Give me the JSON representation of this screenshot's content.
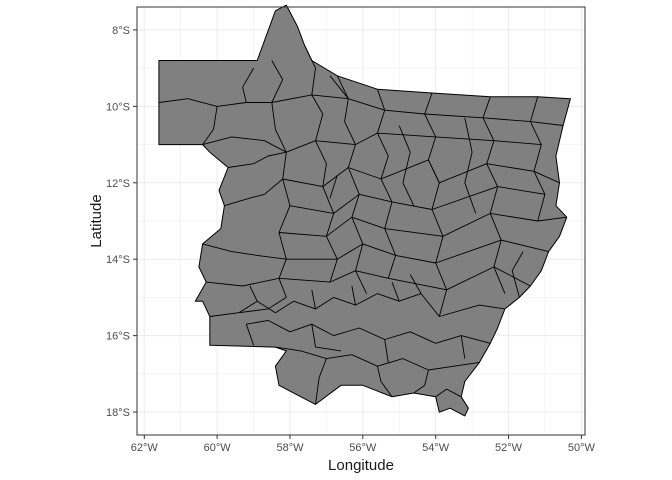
{
  "axes": {
    "xlabel": "Longitude",
    "ylabel": "Latitude"
  },
  "chart_data": {
    "type": "map",
    "region_fill": "#808080",
    "border_color": "#000000",
    "panel_background": "#ffffff",
    "grid": true,
    "grid_color": "#ebebeb",
    "xlim": [
      -62.2,
      -49.9
    ],
    "ylim": [
      -18.6,
      -7.4
    ],
    "x_ticks": [
      {
        "value": -62,
        "label": "62°W"
      },
      {
        "value": -60,
        "label": "60°W"
      },
      {
        "value": -58,
        "label": "58°W"
      },
      {
        "value": -56,
        "label": "56°W"
      },
      {
        "value": -54,
        "label": "54°W"
      },
      {
        "value": -52,
        "label": "52°W"
      },
      {
        "value": -50,
        "label": "50°W"
      }
    ],
    "y_ticks": [
      {
        "value": -8,
        "label": "8°S"
      },
      {
        "value": -10,
        "label": "10°S"
      },
      {
        "value": -12,
        "label": "12°S"
      },
      {
        "value": -14,
        "label": "14°S"
      },
      {
        "value": -16,
        "label": "16°S"
      },
      {
        "value": -18,
        "label": "18°S"
      }
    ],
    "outline": [
      [
        -61.6,
        -8.8
      ],
      [
        -58.9,
        -8.8
      ],
      [
        -58.4,
        -7.5
      ],
      [
        -58.1,
        -7.35
      ],
      [
        -57.8,
        -7.9
      ],
      [
        -57.6,
        -8.4
      ],
      [
        -57.4,
        -8.8
      ],
      [
        -56.7,
        -9.2
      ],
      [
        -55.6,
        -9.55
      ],
      [
        -54.1,
        -9.65
      ],
      [
        -52.5,
        -9.75
      ],
      [
        -51.2,
        -9.75
      ],
      [
        -50.3,
        -9.8
      ],
      [
        -50.5,
        -10.5
      ],
      [
        -50.7,
        -11.3
      ],
      [
        -50.6,
        -12.0
      ],
      [
        -50.7,
        -12.6
      ],
      [
        -50.4,
        -12.9
      ],
      [
        -50.6,
        -13.4
      ],
      [
        -50.9,
        -13.8
      ],
      [
        -51.1,
        -14.3
      ],
      [
        -51.4,
        -14.7
      ],
      [
        -51.7,
        -15.0
      ],
      [
        -52.1,
        -15.3
      ],
      [
        -52.3,
        -15.8
      ],
      [
        -52.5,
        -16.2
      ],
      [
        -52.8,
        -16.7
      ],
      [
        -53.2,
        -17.2
      ],
      [
        -53.3,
        -17.6
      ],
      [
        -53.1,
        -17.9
      ],
      [
        -53.2,
        -18.1
      ],
      [
        -53.6,
        -17.9
      ],
      [
        -53.9,
        -18.0
      ],
      [
        -54.0,
        -17.6
      ],
      [
        -54.6,
        -17.5
      ],
      [
        -55.2,
        -17.6
      ],
      [
        -56.0,
        -17.3
      ],
      [
        -56.6,
        -17.3
      ],
      [
        -57.3,
        -17.8
      ],
      [
        -57.7,
        -17.6
      ],
      [
        -58.3,
        -17.3
      ],
      [
        -58.4,
        -16.8
      ],
      [
        -58.1,
        -16.4
      ],
      [
        -58.4,
        -16.3
      ],
      [
        -60.2,
        -16.25
      ],
      [
        -60.2,
        -15.5
      ],
      [
        -60.4,
        -15.1
      ],
      [
        -60.6,
        -15.1
      ],
      [
        -60.3,
        -14.6
      ],
      [
        -60.5,
        -14.2
      ],
      [
        -60.4,
        -13.6
      ],
      [
        -59.9,
        -13.2
      ],
      [
        -59.8,
        -12.6
      ],
      [
        -59.95,
        -12.2
      ],
      [
        -59.7,
        -11.6
      ],
      [
        -60.2,
        -11.2
      ],
      [
        -60.4,
        -11.0
      ],
      [
        -61.6,
        -11.0
      ]
    ],
    "divisions": [
      [
        [
          -58.5,
          -8.8
        ],
        [
          -58.2,
          -9.3
        ],
        [
          -58.5,
          -9.9
        ],
        [
          -58.4,
          -10.6
        ],
        [
          -58.1,
          -11.2
        ],
        [
          -58.2,
          -11.9
        ],
        [
          -58.0,
          -12.6
        ],
        [
          -58.3,
          -13.3
        ],
        [
          -58.1,
          -14.0
        ],
        [
          -58.3,
          -14.5
        ],
        [
          -58.1,
          -15.0
        ]
      ],
      [
        [
          -59.7,
          -11.6
        ],
        [
          -59.0,
          -11.5
        ],
        [
          -58.6,
          -11.3
        ],
        [
          -58.1,
          -11.2
        ]
      ],
      [
        [
          -59.8,
          -12.6
        ],
        [
          -59.1,
          -12.4
        ],
        [
          -58.7,
          -12.3
        ],
        [
          -58.2,
          -11.9
        ]
      ],
      [
        [
          -60.4,
          -13.6
        ],
        [
          -59.6,
          -13.8
        ],
        [
          -58.9,
          -13.9
        ],
        [
          -58.1,
          -14.0
        ]
      ],
      [
        [
          -60.3,
          -14.6
        ],
        [
          -59.3,
          -14.7
        ],
        [
          -58.3,
          -14.5
        ]
      ],
      [
        [
          -60.2,
          -15.5
        ],
        [
          -59.4,
          -15.4
        ],
        [
          -58.6,
          -15.3
        ],
        [
          -58.1,
          -15.0
        ]
      ],
      [
        [
          -57.6,
          -8.4
        ],
        [
          -57.3,
          -9.0
        ],
        [
          -57.4,
          -9.7
        ],
        [
          -57.1,
          -10.2
        ],
        [
          -57.3,
          -10.9
        ],
        [
          -57.0,
          -11.5
        ],
        [
          -57.1,
          -12.1
        ],
        [
          -56.8,
          -12.8
        ],
        [
          -57.0,
          -13.4
        ],
        [
          -56.7,
          -14.0
        ],
        [
          -56.9,
          -14.6
        ]
      ],
      [
        [
          -56.7,
          -9.2
        ],
        [
          -56.4,
          -9.8
        ],
        [
          -56.5,
          -10.4
        ],
        [
          -56.2,
          -11.0
        ],
        [
          -56.4,
          -11.6
        ],
        [
          -56.1,
          -12.3
        ],
        [
          -56.3,
          -12.9
        ],
        [
          -56.0,
          -13.6
        ],
        [
          -56.2,
          -14.3
        ],
        [
          -55.9,
          -14.9
        ]
      ],
      [
        [
          -55.6,
          -9.55
        ],
        [
          -55.4,
          -10.1
        ],
        [
          -55.6,
          -10.7
        ],
        [
          -55.3,
          -11.3
        ],
        [
          -55.5,
          -11.9
        ],
        [
          -55.2,
          -12.5
        ],
        [
          -55.4,
          -13.2
        ],
        [
          -55.1,
          -13.9
        ],
        [
          -55.3,
          -14.5
        ]
      ],
      [
        [
          -54.1,
          -9.65
        ],
        [
          -54.3,
          -10.2
        ],
        [
          -54.0,
          -10.8
        ],
        [
          -54.2,
          -11.4
        ],
        [
          -53.9,
          -12.0
        ],
        [
          -54.1,
          -12.7
        ],
        [
          -53.8,
          -13.4
        ],
        [
          -54.0,
          -14.1
        ],
        [
          -53.7,
          -14.8
        ],
        [
          -53.9,
          -15.5
        ]
      ],
      [
        [
          -52.5,
          -9.75
        ],
        [
          -52.7,
          -10.3
        ],
        [
          -52.4,
          -10.9
        ],
        [
          -52.6,
          -11.5
        ],
        [
          -52.3,
          -12.1
        ],
        [
          -52.5,
          -12.8
        ],
        [
          -52.2,
          -13.5
        ],
        [
          -52.4,
          -14.2
        ],
        [
          -52.1,
          -14.9
        ]
      ],
      [
        [
          -51.2,
          -9.75
        ],
        [
          -51.4,
          -10.4
        ],
        [
          -51.1,
          -11.0
        ],
        [
          -51.3,
          -11.7
        ],
        [
          -51.0,
          -12.3
        ],
        [
          -51.2,
          -13.0
        ]
      ],
      [
        [
          -61.6,
          -9.9
        ],
        [
          -60.8,
          -9.8
        ],
        [
          -60.0,
          -10.0
        ],
        [
          -59.2,
          -9.9
        ],
        [
          -58.5,
          -9.9
        ],
        [
          -57.4,
          -9.7
        ],
        [
          -56.4,
          -9.8
        ],
        [
          -55.4,
          -10.1
        ],
        [
          -54.3,
          -10.2
        ],
        [
          -52.7,
          -10.3
        ],
        [
          -51.4,
          -10.4
        ],
        [
          -50.5,
          -10.5
        ]
      ],
      [
        [
          -60.4,
          -11.0
        ],
        [
          -59.6,
          -10.8
        ],
        [
          -58.7,
          -10.9
        ],
        [
          -58.1,
          -11.2
        ],
        [
          -57.3,
          -10.9
        ],
        [
          -56.2,
          -11.0
        ],
        [
          -55.6,
          -10.7
        ],
        [
          -54.0,
          -10.8
        ],
        [
          -52.4,
          -10.9
        ],
        [
          -51.1,
          -11.0
        ]
      ],
      [
        [
          -58.2,
          -11.9
        ],
        [
          -57.1,
          -12.1
        ],
        [
          -56.4,
          -11.6
        ],
        [
          -55.5,
          -11.9
        ],
        [
          -54.2,
          -11.4
        ],
        [
          -53.9,
          -12.0
        ],
        [
          -52.6,
          -11.5
        ],
        [
          -51.3,
          -11.7
        ],
        [
          -50.6,
          -12.0
        ]
      ],
      [
        [
          -58.0,
          -12.6
        ],
        [
          -56.8,
          -12.8
        ],
        [
          -56.1,
          -12.3
        ],
        [
          -55.2,
          -12.5
        ],
        [
          -54.1,
          -12.7
        ],
        [
          -52.3,
          -12.1
        ],
        [
          -51.0,
          -12.3
        ]
      ],
      [
        [
          -58.3,
          -13.3
        ],
        [
          -57.0,
          -13.4
        ],
        [
          -56.3,
          -12.9
        ],
        [
          -55.4,
          -13.2
        ],
        [
          -53.8,
          -13.4
        ],
        [
          -52.5,
          -12.8
        ],
        [
          -51.2,
          -13.0
        ],
        [
          -50.4,
          -12.9
        ]
      ],
      [
        [
          -58.1,
          -14.0
        ],
        [
          -56.7,
          -14.0
        ],
        [
          -56.0,
          -13.6
        ],
        [
          -55.1,
          -13.9
        ],
        [
          -54.0,
          -14.1
        ],
        [
          -52.2,
          -13.5
        ],
        [
          -50.9,
          -13.8
        ]
      ],
      [
        [
          -58.3,
          -14.5
        ],
        [
          -56.9,
          -14.6
        ],
        [
          -56.2,
          -14.3
        ],
        [
          -55.3,
          -14.5
        ],
        [
          -53.7,
          -14.8
        ],
        [
          -52.4,
          -14.2
        ],
        [
          -51.4,
          -14.7
        ]
      ],
      [
        [
          -59.4,
          -15.4
        ],
        [
          -58.9,
          -15.1
        ],
        [
          -58.4,
          -15.4
        ],
        [
          -57.9,
          -15.1
        ],
        [
          -57.3,
          -15.3
        ],
        [
          -56.8,
          -15.0
        ],
        [
          -56.2,
          -15.2
        ],
        [
          -55.6,
          -14.9
        ],
        [
          -55.0,
          -15.1
        ],
        [
          -54.4,
          -14.9
        ],
        [
          -53.9,
          -15.5
        ],
        [
          -52.8,
          -15.2
        ],
        [
          -52.1,
          -15.3
        ]
      ],
      [
        [
          -59.2,
          -15.7
        ],
        [
          -58.6,
          -15.6
        ],
        [
          -58.0,
          -15.9
        ],
        [
          -57.4,
          -15.7
        ],
        [
          -56.8,
          -16.0
        ],
        [
          -56.1,
          -15.8
        ],
        [
          -55.4,
          -16.1
        ],
        [
          -54.7,
          -15.9
        ],
        [
          -54.0,
          -16.2
        ],
        [
          -53.3,
          -16.0
        ],
        [
          -52.5,
          -16.2
        ]
      ],
      [
        [
          -58.4,
          -16.3
        ],
        [
          -57.7,
          -16.4
        ],
        [
          -57.0,
          -16.6
        ],
        [
          -56.3,
          -16.5
        ],
        [
          -55.6,
          -16.8
        ],
        [
          -54.9,
          -16.6
        ],
        [
          -54.2,
          -16.9
        ],
        [
          -53.5,
          -16.8
        ],
        [
          -52.8,
          -16.7
        ]
      ],
      [
        [
          -57.0,
          -16.6
        ],
        [
          -57.2,
          -17.1
        ],
        [
          -57.3,
          -17.8
        ]
      ],
      [
        [
          -55.6,
          -16.8
        ],
        [
          -55.5,
          -17.2
        ],
        [
          -55.2,
          -17.6
        ]
      ],
      [
        [
          -54.2,
          -16.9
        ],
        [
          -54.3,
          -17.3
        ],
        [
          -54.6,
          -17.5
        ]
      ],
      [
        [
          -53.3,
          -17.6
        ],
        [
          -53.7,
          -17.4
        ],
        [
          -54.0,
          -17.6
        ]
      ],
      [
        [
          -59.2,
          -15.7
        ],
        [
          -59.0,
          -16.25
        ]
      ],
      [
        [
          -57.4,
          -15.7
        ],
        [
          -57.3,
          -16.3
        ],
        [
          -56.6,
          -16.4
        ]
      ],
      [
        [
          -55.4,
          -16.1
        ],
        [
          -55.3,
          -16.7
        ]
      ],
      [
        [
          -53.3,
          -16.0
        ],
        [
          -53.2,
          -16.6
        ]
      ],
      [
        [
          -58.9,
          -15.1
        ],
        [
          -59.1,
          -14.7
        ]
      ],
      [
        [
          -57.3,
          -15.3
        ],
        [
          -57.4,
          -14.8
        ]
      ],
      [
        [
          -56.2,
          -15.2
        ],
        [
          -56.3,
          -14.7
        ]
      ],
      [
        [
          -55.0,
          -15.1
        ],
        [
          -55.2,
          -14.6
        ]
      ],
      [
        [
          -54.4,
          -14.9
        ],
        [
          -54.7,
          -14.4
        ]
      ],
      [
        [
          -59.0,
          -9.0
        ],
        [
          -59.3,
          -9.5
        ],
        [
          -59.2,
          -9.9
        ]
      ],
      [
        [
          -60.0,
          -10.0
        ],
        [
          -60.1,
          -10.6
        ],
        [
          -60.4,
          -11.0
        ]
      ],
      [
        [
          -56.9,
          -9.2
        ],
        [
          -56.4,
          -9.8
        ]
      ],
      [
        [
          -53.2,
          -10.3
        ],
        [
          -53.0,
          -11.2
        ],
        [
          -53.2,
          -12.0
        ],
        [
          -52.9,
          -12.8
        ]
      ],
      [
        [
          -55.0,
          -10.5
        ],
        [
          -54.7,
          -11.2
        ],
        [
          -54.9,
          -12.0
        ],
        [
          -54.6,
          -12.6
        ]
      ],
      [
        [
          -56.7,
          -11.8
        ],
        [
          -56.9,
          -12.4
        ]
      ],
      [
        [
          -51.6,
          -13.8
        ],
        [
          -51.9,
          -14.3
        ],
        [
          -51.7,
          -15.0
        ]
      ]
    ]
  }
}
